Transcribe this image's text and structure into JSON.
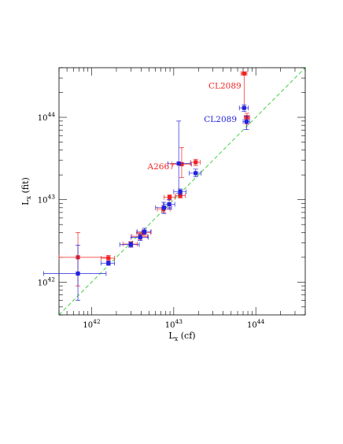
{
  "chart_data": {
    "type": "scatter",
    "title": "",
    "xlabel": {
      "base": "L",
      "sub": "x",
      "suffix": " (cf)"
    },
    "ylabel": {
      "base": "L",
      "sub": "x",
      "suffix": " (fit)"
    },
    "xscale": "log",
    "yscale": "log",
    "xlim": [
      4e+41,
      4e+44
    ],
    "ylim": [
      4e+41,
      4e+44
    ],
    "grid": false,
    "x_tick_labels": [
      {
        "value": 1e+42,
        "base": "10",
        "exp": "42"
      },
      {
        "value": 1e+43,
        "base": "10",
        "exp": "43"
      },
      {
        "value": 1e+44,
        "base": "10",
        "exp": "44"
      }
    ],
    "y_tick_labels": [
      {
        "value": 1e+42,
        "base": "10",
        "exp": "42"
      },
      {
        "value": 1e+43,
        "base": "10",
        "exp": "43"
      },
      {
        "value": 1e+44,
        "base": "10",
        "exp": "44"
      }
    ],
    "reference_line": {
      "kind": "y=x",
      "color": "#33cc33",
      "style": "dashed"
    },
    "series": [
      {
        "color": "#ee2222",
        "points": [
          {
            "x": 6.8e+41,
            "y": 2e+42,
            "xlo": 4e+41,
            "xhi": 1.6e+42,
            "ylo": 9e+41,
            "yhi": 4e+42
          },
          {
            "x": 1.6e+42,
            "y": 1.95e+42,
            "xlo": 1.3e+42,
            "xhi": 1.9e+42,
            "ylo": 1.8e+42,
            "yhi": 2.1e+42
          },
          {
            "x": 3e+42,
            "y": 2.9e+42,
            "xlo": 2.4e+42,
            "xhi": 3.6e+42,
            "ylo": 2.7e+42,
            "yhi": 3.1e+42
          },
          {
            "x": 3.9e+42,
            "y": 3.6e+42,
            "xlo": 3.1e+42,
            "xhi": 4.8e+42,
            "ylo": 3.3e+42,
            "yhi": 3.9e+42
          },
          {
            "x": 4.3e+42,
            "y": 4e+42,
            "xlo": 3.5e+42,
            "xhi": 5.2e+42,
            "ylo": 3.7e+42,
            "yhi": 4.3e+42
          },
          {
            "x": 7.5e+42,
            "y": 7.7e+42,
            "xlo": 6.3e+42,
            "xhi": 9e+42,
            "ylo": 7e+42,
            "yhi": 8.4e+42
          },
          {
            "x": 8.9e+42,
            "y": 1.07e+43,
            "xlo": 7.6e+42,
            "xhi": 1.04e+43,
            "ylo": 9.9e+42,
            "yhi": 1.15e+43
          },
          {
            "x": 1.2e+43,
            "y": 1.12e+43,
            "xlo": 1.05e+43,
            "xhi": 1.38e+43,
            "ylo": 1.05e+43,
            "yhi": 1.2e+43
          },
          {
            "x": 1.25e+43,
            "y": 2.7e+43,
            "xlo": 9.5e+42,
            "xhi": 1.65e+43,
            "ylo": 1.85e+43,
            "yhi": 4.3e+43
          },
          {
            "x": 1.85e+43,
            "y": 2.85e+43,
            "xlo": 1.6e+43,
            "xhi": 2.1e+43,
            "ylo": 2.6e+43,
            "yhi": 3.1e+43
          },
          {
            "x": 7.2e+43,
            "y": 3.4e+44,
            "xlo": 6.6e+43,
            "xhi": 7.8e+43,
            "ylo": 1.3e+44,
            "yhi": 3.55e+44
          },
          {
            "x": 7.8e+43,
            "y": 1e+44,
            "xlo": 7.2e+43,
            "xhi": 8.4e+43,
            "ylo": 8.3e+43,
            "yhi": 1.12e+44
          }
        ]
      },
      {
        "color": "#2222dd",
        "points": [
          {
            "x": 6.8e+41,
            "y": 1.27e+42,
            "xlo": 2.6e+41,
            "xhi": 1.5e+42,
            "ylo": 6e+41,
            "yhi": 2.8e+42
          },
          {
            "x": 1.6e+42,
            "y": 1.7e+42,
            "xlo": 1.3e+42,
            "xhi": 1.9e+42,
            "ylo": 1.6e+42,
            "yhi": 1.8e+42
          },
          {
            "x": 3e+42,
            "y": 2.85e+42,
            "xlo": 2.2e+42,
            "xhi": 3.8e+42,
            "ylo": 2.65e+42,
            "yhi": 3.05e+42
          },
          {
            "x": 3.9e+42,
            "y": 3.5e+42,
            "xlo": 3e+42,
            "xhi": 4.9e+42,
            "ylo": 3.2e+42,
            "yhi": 3.8e+42
          },
          {
            "x": 4.4e+42,
            "y": 4.1e+42,
            "xlo": 3.6e+42,
            "xhi": 5.3e+42,
            "ylo": 3.8e+42,
            "yhi": 4.5e+42
          },
          {
            "x": 7.6e+42,
            "y": 8e+42,
            "xlo": 6e+42,
            "xhi": 9.4e+42,
            "ylo": 6.8e+42,
            "yhi": 9.3e+42
          },
          {
            "x": 8.8e+42,
            "y": 8.8e+42,
            "xlo": 7.4e+42,
            "xhi": 1.03e+43,
            "ylo": 7.7e+42,
            "yhi": 1e+43
          },
          {
            "x": 1.2e+43,
            "y": 1.25e+43,
            "xlo": 1e+43,
            "xhi": 1.42e+43,
            "ylo": 1.15e+43,
            "yhi": 1.35e+43
          },
          {
            "x": 1.15e+43,
            "y": 2.75e+43,
            "xlo": 8.5e+42,
            "xhi": 1.6e+43,
            "ylo": 1.2e+43,
            "yhi": 9e+43
          },
          {
            "x": 1.85e+43,
            "y": 2.1e+43,
            "xlo": 1.55e+43,
            "xhi": 2.15e+43,
            "ylo": 1.9e+43,
            "yhi": 2.35e+43
          },
          {
            "x": 7.2e+43,
            "y": 1.3e+44,
            "xlo": 6.3e+43,
            "xhi": 8.1e+43,
            "ylo": 1.18e+44,
            "yhi": 1.42e+44
          },
          {
            "x": 7.7e+43,
            "y": 8.9e+43,
            "xlo": 7e+43,
            "xhi": 8.4e+43,
            "ylo": 7.1e+43,
            "yhi": 1.04e+44
          }
        ]
      }
    ],
    "annotations": [
      {
        "text": "CL2089",
        "color": "#ee2222",
        "x": 4.2e+43,
        "y": 2.45e+44,
        "anchor": "middle"
      },
      {
        "text": "CL2089",
        "color": "#2222dd",
        "x": 3.7e+43,
        "y": 9.6e+43,
        "anchor": "middle"
      },
      {
        "text": "A2667",
        "color": "#ee2222",
        "x": 7e+42,
        "y": 2.55e+43,
        "anchor": "middle"
      }
    ]
  }
}
